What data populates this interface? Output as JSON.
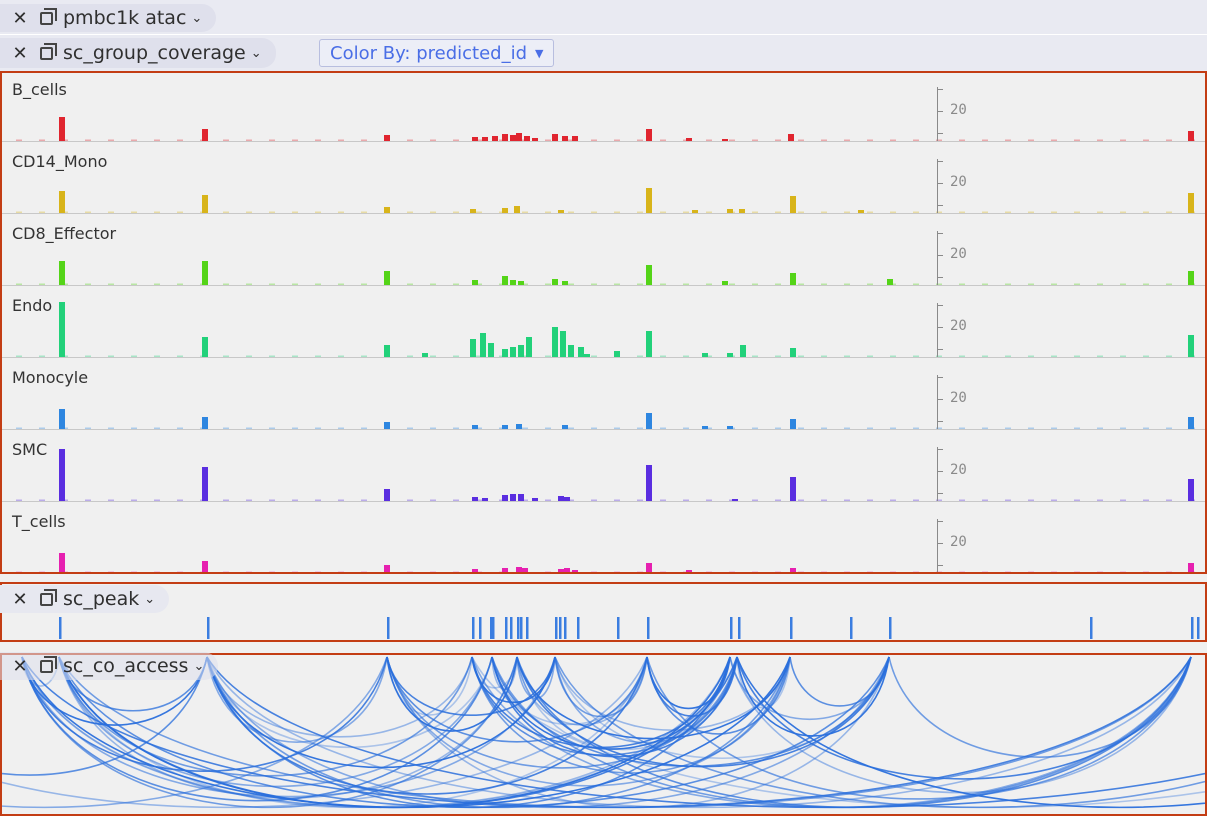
{
  "tabs": {
    "atac": {
      "label": "pmbc1k atac",
      "close_icon": "close-icon",
      "track_icon": "track-icon"
    },
    "coverage": {
      "label": "sc_group_coverage"
    },
    "peak": {
      "label": "sc_peak"
    },
    "coaccess": {
      "label": "sc_co_access"
    }
  },
  "color_by": {
    "label": "Color By: predicted_id"
  },
  "coverage": {
    "axis_tick": "20",
    "groups": [
      {
        "name": "B_cells",
        "color": "#e0252f",
        "bars": [
          [
            57,
            24
          ],
          [
            200,
            12
          ],
          [
            382,
            6
          ],
          [
            470,
            4
          ],
          [
            480,
            4
          ],
          [
            490,
            5
          ],
          [
            500,
            7
          ],
          [
            508,
            6
          ],
          [
            514,
            8
          ],
          [
            522,
            5
          ],
          [
            530,
            3
          ],
          [
            550,
            7
          ],
          [
            560,
            5
          ],
          [
            570,
            5
          ],
          [
            644,
            12
          ],
          [
            684,
            3
          ],
          [
            720,
            2
          ],
          [
            786,
            7
          ],
          [
            1186,
            10
          ]
        ]
      },
      {
        "name": "CD14_Mono",
        "color": "#d8b41a",
        "bars": [
          [
            57,
            22
          ],
          [
            200,
            18
          ],
          [
            382,
            6
          ],
          [
            468,
            4
          ],
          [
            500,
            5
          ],
          [
            512,
            7
          ],
          [
            556,
            3
          ],
          [
            644,
            25
          ],
          [
            690,
            3
          ],
          [
            725,
            4
          ],
          [
            737,
            4
          ],
          [
            788,
            17
          ],
          [
            856,
            3
          ],
          [
            1186,
            20
          ]
        ]
      },
      {
        "name": "CD8_Effector",
        "color": "#54d418",
        "bars": [
          [
            57,
            24
          ],
          [
            200,
            24
          ],
          [
            382,
            14
          ],
          [
            470,
            5
          ],
          [
            500,
            9
          ],
          [
            508,
            5
          ],
          [
            516,
            4
          ],
          [
            550,
            6
          ],
          [
            560,
            4
          ],
          [
            644,
            20
          ],
          [
            720,
            4
          ],
          [
            788,
            12
          ],
          [
            885,
            6
          ],
          [
            1186,
            14
          ]
        ]
      },
      {
        "name": "Endo",
        "color": "#22d17a",
        "bars": [
          [
            57,
            55
          ],
          [
            200,
            20
          ],
          [
            382,
            12
          ],
          [
            420,
            4
          ],
          [
            468,
            18
          ],
          [
            478,
            24
          ],
          [
            486,
            14
          ],
          [
            500,
            8
          ],
          [
            508,
            10
          ],
          [
            516,
            12
          ],
          [
            524,
            20
          ],
          [
            550,
            30
          ],
          [
            558,
            26
          ],
          [
            566,
            12
          ],
          [
            576,
            10
          ],
          [
            582,
            3
          ],
          [
            612,
            6
          ],
          [
            644,
            26
          ],
          [
            700,
            4
          ],
          [
            725,
            4
          ],
          [
            738,
            12
          ],
          [
            788,
            9
          ],
          [
            1186,
            22
          ]
        ]
      },
      {
        "name": "Monocyle",
        "color": "#2e86e0",
        "bars": [
          [
            57,
            20
          ],
          [
            200,
            12
          ],
          [
            382,
            7
          ],
          [
            470,
            4
          ],
          [
            500,
            4
          ],
          [
            514,
            5
          ],
          [
            560,
            4
          ],
          [
            644,
            16
          ],
          [
            700,
            3
          ],
          [
            725,
            3
          ],
          [
            788,
            10
          ],
          [
            1186,
            12
          ]
        ]
      },
      {
        "name": "SMC",
        "color": "#5a2ee0",
        "bars": [
          [
            57,
            52
          ],
          [
            200,
            34
          ],
          [
            382,
            12
          ],
          [
            470,
            4
          ],
          [
            480,
            3
          ],
          [
            500,
            6
          ],
          [
            508,
            7
          ],
          [
            516,
            7
          ],
          [
            530,
            3
          ],
          [
            556,
            5
          ],
          [
            562,
            4
          ],
          [
            644,
            36
          ],
          [
            730,
            2
          ],
          [
            788,
            24
          ],
          [
            1186,
            22
          ]
        ]
      },
      {
        "name": "T_cells",
        "color": "#e620b0",
        "bars": [
          [
            57,
            20
          ],
          [
            200,
            12
          ],
          [
            382,
            8
          ],
          [
            470,
            4
          ],
          [
            500,
            5
          ],
          [
            514,
            6
          ],
          [
            520,
            5
          ],
          [
            556,
            4
          ],
          [
            562,
            5
          ],
          [
            570,
            3
          ],
          [
            644,
            10
          ],
          [
            684,
            3
          ],
          [
            788,
            5
          ],
          [
            1186,
            10
          ]
        ]
      }
    ]
  },
  "peaks": {
    "color": "#3a7de0",
    "positions": [
      57,
      205,
      385,
      470,
      477,
      488,
      490,
      503,
      508,
      515,
      518,
      524,
      553,
      557,
      562,
      575,
      615,
      645,
      728,
      736,
      788,
      848,
      887,
      1088,
      1189,
      1195
    ]
  },
  "coaccess": {
    "color": "#2a6fdc",
    "anchors": [
      20,
      57,
      205,
      385,
      470,
      490,
      515,
      553,
      645,
      728,
      735,
      788,
      887,
      1189
    ]
  }
}
